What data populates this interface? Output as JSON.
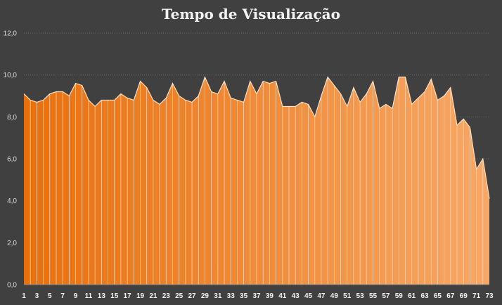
{
  "chart_data": {
    "type": "area",
    "title": "Tempo de Visualização",
    "xlabel": "",
    "ylabel": "",
    "ylim": [
      0,
      12
    ],
    "yticks": [
      "0,0",
      "2,0",
      "4,0",
      "6,0",
      "8,0",
      "10,0",
      "12,0"
    ],
    "ytick_values": [
      0,
      2,
      4,
      6,
      8,
      10,
      12
    ],
    "x": [
      1,
      2,
      3,
      4,
      5,
      6,
      7,
      8,
      9,
      10,
      11,
      12,
      13,
      14,
      15,
      16,
      17,
      18,
      19,
      20,
      21,
      22,
      23,
      24,
      25,
      26,
      27,
      28,
      29,
      30,
      31,
      32,
      33,
      34,
      35,
      36,
      37,
      38,
      39,
      40,
      41,
      42,
      43,
      44,
      45,
      46,
      47,
      48,
      49,
      50,
      51,
      52,
      53,
      54,
      55,
      56,
      57,
      58,
      59,
      60,
      61,
      62,
      63,
      64,
      65,
      66,
      67,
      68,
      69,
      70,
      71,
      72,
      73
    ],
    "xtick_labels": [
      "1",
      "3",
      "5",
      "7",
      "9",
      "11",
      "13",
      "15",
      "17",
      "19",
      "21",
      "23",
      "25",
      "27",
      "29",
      "31",
      "33",
      "35",
      "37",
      "39",
      "41",
      "43",
      "45",
      "47",
      "49",
      "51",
      "53",
      "55",
      "57",
      "59",
      "61",
      "63",
      "65",
      "67",
      "69",
      "71",
      "73"
    ],
    "xtick_values": [
      1,
      3,
      5,
      7,
      9,
      11,
      13,
      15,
      17,
      19,
      21,
      23,
      25,
      27,
      29,
      31,
      33,
      35,
      37,
      39,
      41,
      43,
      45,
      47,
      49,
      51,
      53,
      55,
      57,
      59,
      61,
      63,
      65,
      67,
      69,
      71,
      73
    ],
    "values": [
      9.1,
      8.8,
      8.7,
      8.8,
      9.1,
      9.2,
      9.2,
      9.0,
      9.6,
      9.5,
      8.8,
      8.5,
      8.8,
      8.8,
      8.8,
      9.1,
      8.9,
      8.8,
      9.7,
      9.4,
      8.8,
      8.6,
      8.9,
      9.6,
      9.0,
      8.8,
      8.7,
      9.0,
      9.9,
      9.2,
      9.1,
      9.7,
      8.9,
      8.8,
      8.7,
      9.7,
      9.1,
      9.7,
      9.6,
      9.7,
      8.5,
      8.5,
      8.5,
      8.7,
      8.6,
      8.0,
      9.0,
      9.9,
      9.5,
      9.1,
      8.5,
      9.4,
      8.7,
      9.1,
      9.7,
      8.4,
      8.6,
      8.4,
      9.9,
      9.9,
      8.6,
      8.9,
      9.2,
      9.8,
      8.8,
      9.0,
      9.4,
      7.6,
      7.9,
      7.5,
      5.5,
      6.0,
      4.1
    ],
    "grid": true,
    "legend": "none",
    "colors": {
      "background": "#404040",
      "fill_start": "#e8700e",
      "fill_end": "#f7a766",
      "line": "#fde0c4"
    }
  }
}
